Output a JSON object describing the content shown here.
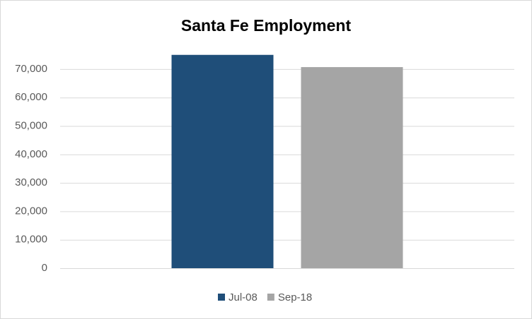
{
  "chart_data": {
    "type": "bar",
    "title": "Santa Fe Employment",
    "categories": [
      null
    ],
    "series": [
      {
        "name": "Jul-08",
        "color": "#1f4e79",
        "values": [
          75000
        ]
      },
      {
        "name": "Sep-18",
        "color": "#a5a5a5",
        "values": [
          70700
        ]
      }
    ],
    "ylim": [
      0,
      80000
    ],
    "yticks": [
      0,
      {
        "value": 10000,
        "label": "10,000"
      },
      {
        "value": 20000,
        "label": "20,000"
      },
      {
        "value": 30000,
        "label": "30,000"
      },
      {
        "value": 40000,
        "label": "40,000"
      },
      {
        "value": 50000,
        "label": "50,000"
      },
      {
        "value": 60000,
        "label": "60,000"
      },
      {
        "value": 70000,
        "label": "70,000"
      }
    ],
    "grid": true,
    "legend": "bottom"
  }
}
